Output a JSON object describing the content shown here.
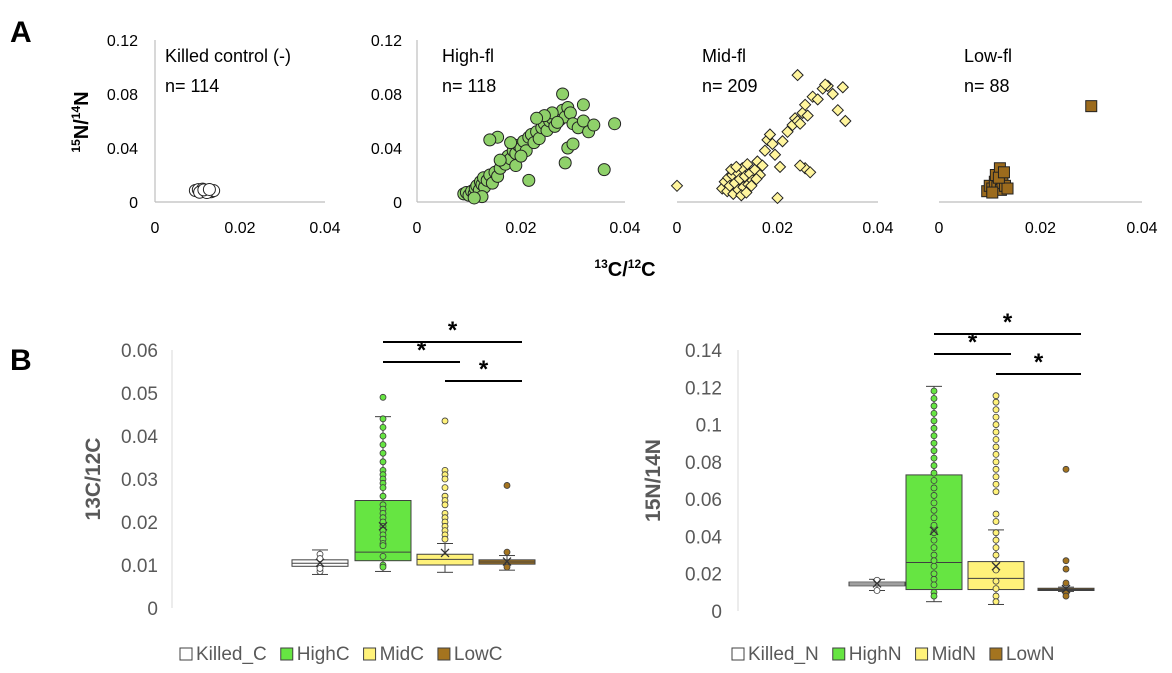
{
  "panel_labels": {
    "a": "A",
    "b": "B"
  },
  "scatter": {
    "ylabel": {
      "base": "N/",
      "sup1": "15",
      "sup2": "14",
      "tail": "N"
    },
    "xlabel": {
      "sup1": "13",
      "base": "C/",
      "sup2": "12",
      "tail": "C"
    }
  },
  "chart_data": [
    {
      "type": "scatter",
      "title": "Killed  control (-)",
      "n_label": "n= 114",
      "xlim": [
        0,
        0.04
      ],
      "ylim": [
        0,
        0.12
      ],
      "xticks": [
        "0",
        "0.02",
        "0.04"
      ],
      "yticks": [
        "0",
        "0.04",
        "0.08",
        "0.12"
      ],
      "marker": "circle",
      "fill": "#ffffff",
      "points": [
        [
          0.0095,
          0.0085
        ],
        [
          0.0102,
          0.0092
        ],
        [
          0.0108,
          0.0078
        ],
        [
          0.0112,
          0.0095
        ],
        [
          0.0118,
          0.0082
        ],
        [
          0.0125,
          0.0088
        ],
        [
          0.0132,
          0.0076
        ],
        [
          0.0138,
          0.0084
        ],
        [
          0.0105,
          0.0072
        ],
        [
          0.0122,
          0.007
        ],
        [
          0.0115,
          0.009
        ],
        [
          0.0128,
          0.0093
        ]
      ]
    },
    {
      "type": "scatter",
      "title": "High-fl",
      "n_label": "n= 118",
      "xlim": [
        0,
        0.04
      ],
      "ylim": [
        0,
        0.12
      ],
      "xticks": [
        "0",
        "0.02",
        "0.04"
      ],
      "yticks": [
        "0",
        "0.04",
        "0.08",
        "0.12"
      ],
      "marker": "circle",
      "fill": "#8fd16a",
      "points": [
        [
          0.009,
          0.006
        ],
        [
          0.0095,
          0.007
        ],
        [
          0.01,
          0.005
        ],
        [
          0.0105,
          0.008
        ],
        [
          0.011,
          0.006
        ],
        [
          0.0112,
          0.01
        ],
        [
          0.0115,
          0.012
        ],
        [
          0.012,
          0.009
        ],
        [
          0.0122,
          0.015
        ],
        [
          0.0125,
          0.013
        ],
        [
          0.013,
          0.011
        ],
        [
          0.0128,
          0.018
        ],
        [
          0.0135,
          0.016
        ],
        [
          0.014,
          0.02
        ],
        [
          0.0145,
          0.014
        ],
        [
          0.015,
          0.022
        ],
        [
          0.0155,
          0.019
        ],
        [
          0.016,
          0.025
        ],
        [
          0.0165,
          0.03
        ],
        [
          0.017,
          0.028
        ],
        [
          0.0175,
          0.034
        ],
        [
          0.018,
          0.032
        ],
        [
          0.0185,
          0.038
        ],
        [
          0.019,
          0.036
        ],
        [
          0.0195,
          0.042
        ],
        [
          0.02,
          0.04
        ],
        [
          0.0205,
          0.045
        ],
        [
          0.021,
          0.038
        ],
        [
          0.0215,
          0.048
        ],
        [
          0.022,
          0.05
        ],
        [
          0.0225,
          0.044
        ],
        [
          0.023,
          0.052
        ],
        [
          0.0235,
          0.047
        ],
        [
          0.024,
          0.055
        ],
        [
          0.0245,
          0.058
        ],
        [
          0.025,
          0.053
        ],
        [
          0.0255,
          0.06
        ],
        [
          0.026,
          0.062
        ],
        [
          0.0265,
          0.056
        ],
        [
          0.027,
          0.065
        ],
        [
          0.0275,
          0.061
        ],
        [
          0.028,
          0.068
        ],
        [
          0.0285,
          0.063
        ],
        [
          0.029,
          0.07
        ],
        [
          0.0295,
          0.066
        ],
        [
          0.03,
          0.058
        ],
        [
          0.031,
          0.055
        ],
        [
          0.032,
          0.06
        ],
        [
          0.033,
          0.052
        ],
        [
          0.034,
          0.057
        ],
        [
          0.028,
          0.08
        ],
        [
          0.026,
          0.066
        ],
        [
          0.0245,
          0.064
        ],
        [
          0.029,
          0.04
        ],
        [
          0.03,
          0.043
        ],
        [
          0.0285,
          0.029
        ],
        [
          0.032,
          0.072
        ],
        [
          0.027,
          0.059
        ],
        [
          0.023,
          0.062
        ],
        [
          0.018,
          0.044
        ],
        [
          0.0155,
          0.048
        ],
        [
          0.014,
          0.046
        ],
        [
          0.019,
          0.027
        ],
        [
          0.0215,
          0.016
        ],
        [
          0.036,
          0.024
        ],
        [
          0.038,
          0.058
        ],
        [
          0.0125,
          0.004
        ],
        [
          0.011,
          0.003
        ],
        [
          0.02,
          0.034
        ],
        [
          0.016,
          0.031
        ]
      ]
    },
    {
      "type": "scatter",
      "title": "Mid-fl",
      "n_label": "n= 209",
      "xlim": [
        0,
        0.04
      ],
      "ylim": [
        0,
        0.12
      ],
      "xticks": [
        "0",
        "0.02",
        "0.04"
      ],
      "yticks": [],
      "marker": "diamond",
      "fill": "#fff59d",
      "points": [
        [
          0.0,
          0.012
        ],
        [
          0.009,
          0.01
        ],
        [
          0.0095,
          0.015
        ],
        [
          0.01,
          0.008
        ],
        [
          0.0102,
          0.018
        ],
        [
          0.0105,
          0.012
        ],
        [
          0.011,
          0.02
        ],
        [
          0.0112,
          0.006
        ],
        [
          0.0115,
          0.014
        ],
        [
          0.012,
          0.022
        ],
        [
          0.0122,
          0.009
        ],
        [
          0.0125,
          0.017
        ],
        [
          0.013,
          0.025
        ],
        [
          0.0132,
          0.011
        ],
        [
          0.0135,
          0.019
        ],
        [
          0.014,
          0.028
        ],
        [
          0.0142,
          0.013
        ],
        [
          0.0145,
          0.021
        ],
        [
          0.015,
          0.016
        ],
        [
          0.0155,
          0.024
        ],
        [
          0.016,
          0.03
        ],
        [
          0.0165,
          0.02
        ],
        [
          0.017,
          0.027
        ],
        [
          0.0175,
          0.038
        ],
        [
          0.018,
          0.046
        ],
        [
          0.0185,
          0.05
        ],
        [
          0.019,
          0.043
        ],
        [
          0.0195,
          0.035
        ],
        [
          0.02,
          0.003
        ],
        [
          0.0205,
          0.026
        ],
        [
          0.021,
          0.045
        ],
        [
          0.022,
          0.052
        ],
        [
          0.023,
          0.057
        ],
        [
          0.0235,
          0.062
        ],
        [
          0.024,
          0.06
        ],
        [
          0.0245,
          0.058
        ],
        [
          0.025,
          0.066
        ],
        [
          0.0255,
          0.072
        ],
        [
          0.026,
          0.064
        ],
        [
          0.027,
          0.078
        ],
        [
          0.028,
          0.076
        ],
        [
          0.029,
          0.084
        ],
        [
          0.03,
          0.086
        ],
        [
          0.031,
          0.08
        ],
        [
          0.032,
          0.068
        ],
        [
          0.033,
          0.085
        ],
        [
          0.0335,
          0.06
        ],
        [
          0.024,
          0.094
        ],
        [
          0.0255,
          0.025
        ],
        [
          0.0245,
          0.027
        ],
        [
          0.0265,
          0.022
        ],
        [
          0.0295,
          0.087
        ],
        [
          0.0108,
          0.024
        ],
        [
          0.0118,
          0.026
        ],
        [
          0.0128,
          0.005
        ],
        [
          0.0138,
          0.007
        ],
        [
          0.0148,
          0.012
        ],
        [
          0.0158,
          0.017
        ]
      ]
    },
    {
      "type": "scatter",
      "title": "Low-fl",
      "n_label": "n= 88",
      "xlim": [
        0,
        0.04
      ],
      "ylim": [
        0,
        0.12
      ],
      "xticks": [
        "0",
        "0.02",
        "0.04"
      ],
      "yticks": [],
      "marker": "square",
      "fill": "#9c6b1d",
      "points": [
        [
          0.0095,
          0.008
        ],
        [
          0.01,
          0.012
        ],
        [
          0.0105,
          0.01
        ],
        [
          0.011,
          0.015
        ],
        [
          0.0112,
          0.02
        ],
        [
          0.0115,
          0.011
        ],
        [
          0.012,
          0.025
        ],
        [
          0.0122,
          0.009
        ],
        [
          0.0125,
          0.014
        ],
        [
          0.013,
          0.012
        ],
        [
          0.0135,
          0.01
        ],
        [
          0.0105,
          0.007
        ],
        [
          0.0118,
          0.018
        ],
        [
          0.0128,
          0.022
        ],
        [
          0.03,
          0.071
        ]
      ]
    },
    {
      "type": "box",
      "ylabel": "13C/12C",
      "ylim": [
        0,
        0.06
      ],
      "yticks": [
        "0",
        "0.01",
        "0.02",
        "0.03",
        "0.04",
        "0.05",
        "0.06"
      ],
      "legend": [
        "Killed_C",
        "HighC",
        "MidC",
        "LowC"
      ],
      "legend_position": "bottom",
      "significance": [
        {
          "from": 2,
          "to": 4,
          "label": "*"
        },
        {
          "from": 2,
          "to": 3,
          "label": "*"
        },
        {
          "from": 3,
          "to": 4,
          "label": "*"
        }
      ],
      "series": [
        {
          "name": "Killed_C",
          "fill": "#ffffff",
          "whisker_low": 0.0078,
          "q1": 0.0097,
          "median": 0.0104,
          "q3": 0.0112,
          "whisker_high": 0.0135,
          "mean": 0.0105,
          "outliers": [
            0.0125,
            0.0085,
            0.0092,
            0.0115
          ]
        },
        {
          "name": "HighC",
          "fill": "#66e542",
          "whisker_low": 0.0085,
          "q1": 0.011,
          "median": 0.013,
          "q3": 0.025,
          "whisker_high": 0.0445,
          "mean": 0.019,
          "outliers": [
            0.049,
            0.044,
            0.042,
            0.04,
            0.038,
            0.036,
            0.034,
            0.032,
            0.031,
            0.03,
            0.029,
            0.028,
            0.026,
            0.024,
            0.023,
            0.022,
            0.021,
            0.02,
            0.019,
            0.018,
            0.017,
            0.016,
            0.015,
            0.0145,
            0.012,
            0.01,
            0.0095
          ]
        },
        {
          "name": "MidC",
          "fill": "#fff27a",
          "whisker_low": 0.0083,
          "q1": 0.01,
          "median": 0.0113,
          "q3": 0.0125,
          "whisker_high": 0.015,
          "mean": 0.0128,
          "outliers": [
            0.0435,
            0.032,
            0.031,
            0.03,
            0.028,
            0.026,
            0.025,
            0.024,
            0.022,
            0.021,
            0.02,
            0.019,
            0.018,
            0.017,
            0.016
          ]
        },
        {
          "name": "LowC",
          "fill": "#a4741f",
          "whisker_low": 0.0088,
          "q1": 0.0102,
          "median": 0.0107,
          "q3": 0.0112,
          "whisker_high": 0.0122,
          "mean": 0.0108,
          "outliers": [
            0.0285,
            0.013,
            0.0095
          ]
        }
      ]
    },
    {
      "type": "box",
      "ylabel": "15N/14N",
      "ylim": [
        0,
        0.14
      ],
      "yticks": [
        "0",
        "0.02",
        "0.04",
        "0.06",
        "0.08",
        "0.1",
        "0.12",
        "0.14"
      ],
      "legend": [
        "Killed_N",
        "HighN",
        "MidN",
        "LowN"
      ],
      "legend_position": "bottom",
      "significance": [
        {
          "from": 2,
          "to": 4,
          "label": "*"
        },
        {
          "from": 2,
          "to": 3,
          "label": "*"
        },
        {
          "from": 3,
          "to": 4,
          "label": "*"
        }
      ],
      "series": [
        {
          "name": "Killed_N",
          "fill": "#ffffff",
          "whisker_low": 0.011,
          "q1": 0.0135,
          "median": 0.0145,
          "q3": 0.0155,
          "whisker_high": 0.017,
          "mean": 0.0148,
          "outliers": [
            0.011,
            0.0165
          ]
        },
        {
          "name": "HighN",
          "fill": "#66e542",
          "whisker_low": 0.005,
          "q1": 0.0115,
          "median": 0.026,
          "q3": 0.073,
          "whisker_high": 0.1205,
          "mean": 0.043,
          "outliers": [
            0.118,
            0.114,
            0.11,
            0.106,
            0.102,
            0.098,
            0.094,
            0.09,
            0.086,
            0.082,
            0.078,
            0.074,
            0.07,
            0.066,
            0.062,
            0.058,
            0.054,
            0.05,
            0.046,
            0.042,
            0.038,
            0.034,
            0.03,
            0.027,
            0.024,
            0.02,
            0.017,
            0.014,
            0.01,
            0.008
          ]
        },
        {
          "name": "MidN",
          "fill": "#fff27a",
          "whisker_low": 0.0035,
          "q1": 0.0115,
          "median": 0.0175,
          "q3": 0.0265,
          "whisker_high": 0.0435,
          "mean": 0.024,
          "outliers": [
            0.1155,
            0.112,
            0.108,
            0.104,
            0.1,
            0.096,
            0.092,
            0.088,
            0.084,
            0.08,
            0.076,
            0.072,
            0.068,
            0.064,
            0.052,
            0.048,
            0.042,
            0.038,
            0.034,
            0.03,
            0.022,
            0.016,
            0.012,
            0.008,
            0.005
          ]
        },
        {
          "name": "LowN",
          "fill": "#a4741f",
          "whisker_low": 0.0105,
          "q1": 0.011,
          "median": 0.0115,
          "q3": 0.0122,
          "whisker_high": 0.0128,
          "mean": 0.0118,
          "outliers": [
            0.076,
            0.027,
            0.0225,
            0.015,
            0.0095,
            0.008
          ]
        }
      ]
    }
  ]
}
